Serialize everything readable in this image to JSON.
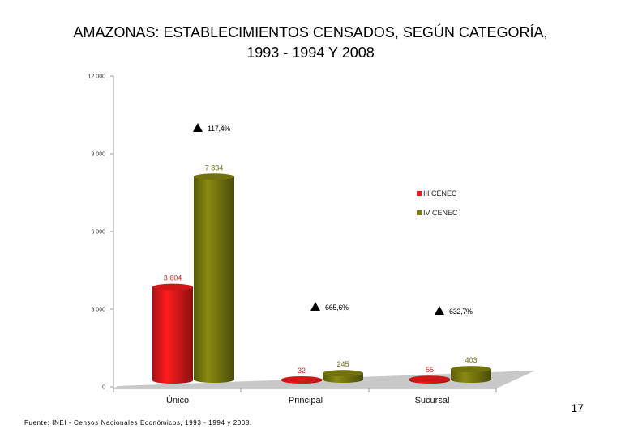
{
  "title_lines": [
    "AMAZONAS: ESTABLECIMIENTOS CENSADOS, SEGÚN CATEGORÍA,",
    "1993 - 1994 Y 2008"
  ],
  "page_number": "17",
  "source": "Fuente: INEI - Censos Nacionales Económicos, 1993 - 1994 y 2008.",
  "colors": {
    "series1": "#e8191b",
    "series2": "#7d7d0f",
    "floor": "#c8c8c8",
    "axis": "#999999"
  },
  "chart_data": {
    "type": "bar",
    "title": "AMAZONAS: ESTABLECIMIENTOS CENSADOS, SEGÚN CATEGORÍA, 1993 - 1994 Y 2008",
    "categories": [
      "Único",
      "Principal",
      "Sucursal"
    ],
    "series": [
      {
        "name": "III CENEC",
        "values": [
          3604,
          32,
          55
        ],
        "labels": [
          "3 604",
          "32",
          "55"
        ]
      },
      {
        "name": "IV CENEC",
        "values": [
          7834,
          245,
          403
        ],
        "labels": [
          "7 834",
          "245",
          "403"
        ]
      }
    ],
    "growth": [
      "117,4%",
      "665,6%",
      "632,7%"
    ],
    "ylim": [
      0,
      12000
    ],
    "yticks": [
      0,
      3000,
      6000,
      9000,
      12000
    ],
    "ytick_labels": [
      "0",
      "3 000",
      "6 000",
      "9 000",
      "12 000"
    ],
    "legend_position": "right",
    "xlabel": "",
    "ylabel": ""
  }
}
